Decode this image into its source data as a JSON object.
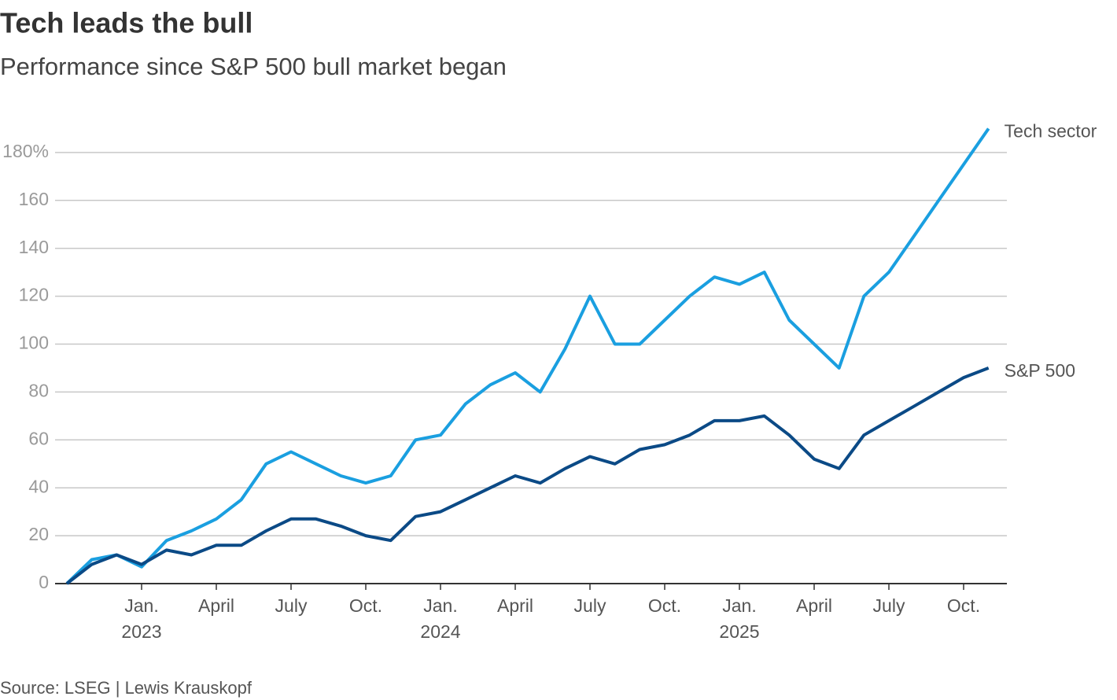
{
  "chart_data": {
    "type": "line",
    "title": "Tech leads the bull",
    "subtitle": "Performance since S&P 500 bull market began",
    "source": "Source: LSEG | Lewis Krauskopf",
    "x": [
      "2022-10",
      "2022-11",
      "2022-12",
      "2023-01",
      "2023-02",
      "2023-03",
      "2023-04",
      "2023-05",
      "2023-06",
      "2023-07",
      "2023-08",
      "2023-09",
      "2023-10",
      "2023-11",
      "2023-12",
      "2024-01",
      "2024-02",
      "2024-03",
      "2024-04",
      "2024-05",
      "2024-06",
      "2024-07",
      "2024-08",
      "2024-09",
      "2024-10",
      "2024-11",
      "2024-12",
      "2025-01",
      "2025-02",
      "2025-03",
      "2025-04",
      "2025-05",
      "2025-06",
      "2025-07",
      "2025-08",
      "2025-09",
      "2025-10",
      "2025-11"
    ],
    "series": [
      {
        "name": "Tech sector",
        "color": "#1a9fe0",
        "values": [
          0,
          10,
          12,
          7,
          18,
          22,
          27,
          35,
          50,
          55,
          50,
          45,
          42,
          45,
          60,
          62,
          75,
          83,
          88,
          80,
          98,
          120,
          100,
          100,
          110,
          120,
          128,
          125,
          130,
          110,
          100,
          90,
          120,
          130,
          145,
          160,
          175,
          190
        ]
      },
      {
        "name": "S&P 500",
        "color": "#0b4a86",
        "values": [
          0,
          8,
          12,
          8,
          14,
          12,
          16,
          16,
          22,
          27,
          27,
          24,
          20,
          18,
          28,
          30,
          35,
          40,
          45,
          42,
          48,
          53,
          50,
          56,
          58,
          62,
          68,
          68,
          70,
          62,
          52,
          48,
          62,
          68,
          74,
          80,
          86,
          90
        ]
      }
    ],
    "ylim": [
      0,
      200
    ],
    "yticks": [
      0,
      20,
      40,
      60,
      80,
      100,
      120,
      140,
      160,
      {
        "value": 180,
        "label": "180%"
      }
    ],
    "xticks": [
      {
        "value": "2023-01",
        "label": "Jan."
      },
      {
        "value": "2023-04",
        "label": "April"
      },
      {
        "value": "2023-07",
        "label": "July"
      },
      {
        "value": "2023-10",
        "label": "Oct."
      },
      {
        "value": "2024-01",
        "label": "Jan."
      },
      {
        "value": "2024-04",
        "label": "April"
      },
      {
        "value": "2024-07",
        "label": "July"
      },
      {
        "value": "2024-10",
        "label": "Oct."
      },
      {
        "value": "2025-01",
        "label": "Jan."
      },
      {
        "value": "2025-04",
        "label": "April"
      },
      {
        "value": "2025-07",
        "label": "July"
      },
      {
        "value": "2025-10",
        "label": "Oct."
      }
    ],
    "year_labels": [
      {
        "value": "2023-01",
        "label": "2023"
      },
      {
        "value": "2024-01",
        "label": "2024"
      },
      {
        "value": "2025-01",
        "label": "2025"
      }
    ],
    "grid": true
  }
}
